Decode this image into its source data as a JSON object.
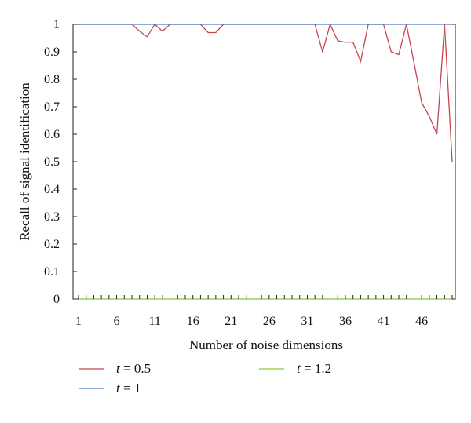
{
  "chart_data": {
    "type": "line",
    "title": "",
    "xlabel": "Number of noise dimensions",
    "ylabel": "Recall of signal identification",
    "xlim": [
      1,
      50
    ],
    "ylim": [
      0,
      1
    ],
    "xticks": [
      1,
      6,
      11,
      16,
      21,
      26,
      31,
      36,
      41,
      46
    ],
    "xtick_labels": [
      "1",
      "6",
      "11",
      "16",
      "21",
      "26",
      "31",
      "36",
      "41",
      "46"
    ],
    "yticks": [
      0,
      0.1,
      0.2,
      0.3,
      0.4,
      0.5,
      0.6,
      0.7,
      0.8,
      0.9,
      1
    ],
    "ytick_labels": [
      "0",
      "0.1",
      "0.2",
      "0.3",
      "0.4",
      "0.5",
      "0.6",
      "0.7",
      "0.8",
      "0.9",
      "1"
    ],
    "grid": false,
    "legend_position": "bottom",
    "x": [
      1,
      2,
      3,
      4,
      5,
      6,
      7,
      8,
      9,
      10,
      11,
      12,
      13,
      14,
      15,
      16,
      17,
      18,
      19,
      20,
      21,
      22,
      23,
      24,
      25,
      26,
      27,
      28,
      29,
      30,
      31,
      32,
      33,
      34,
      35,
      36,
      37,
      38,
      39,
      40,
      41,
      42,
      43,
      44,
      45,
      46,
      47,
      48,
      49,
      50
    ],
    "series": [
      {
        "name": "t = 0.5",
        "var": "t",
        "val": "= 0.5",
        "color": "#c8434b",
        "values": [
          1,
          1,
          1,
          1,
          1,
          1,
          1,
          1,
          0.975,
          0.955,
          1,
          0.975,
          1,
          1,
          1,
          1,
          1,
          0.97,
          0.97,
          1,
          1,
          1,
          1,
          1,
          1,
          1,
          1,
          1,
          1,
          1,
          1,
          1,
          0.9,
          1,
          0.94,
          0.935,
          0.935,
          0.865,
          1,
          1,
          1,
          0.9,
          0.89,
          1,
          0.86,
          0.715,
          0.665,
          0.6,
          1,
          0.5
        ]
      },
      {
        "name": "t = 1",
        "var": "t",
        "val": "= 1",
        "color": "#4b7cc8",
        "values": [
          1,
          1,
          1,
          1,
          1,
          1,
          1,
          1,
          1,
          1,
          1,
          1,
          1,
          1,
          1,
          1,
          1,
          1,
          1,
          1,
          1,
          1,
          1,
          1,
          1,
          1,
          1,
          1,
          1,
          1,
          1,
          1,
          1,
          1,
          1,
          1,
          1,
          1,
          1,
          1,
          1,
          1,
          1,
          1,
          1,
          1,
          1,
          1,
          1,
          1
        ]
      },
      {
        "name": "t = 1.2",
        "var": "t",
        "val": "= 1.2",
        "color": "#8cc63f",
        "values": [
          0,
          0,
          0,
          0,
          0,
          0,
          0,
          0,
          0,
          0,
          0,
          0,
          0,
          0,
          0,
          0,
          0,
          0,
          0,
          0,
          0,
          0,
          0,
          0,
          0,
          0,
          0,
          0,
          0,
          0,
          0,
          0,
          0,
          0,
          0,
          0,
          0,
          0,
          0,
          0,
          0,
          0,
          0,
          0,
          0,
          0,
          0,
          0,
          0,
          0
        ]
      }
    ]
  }
}
